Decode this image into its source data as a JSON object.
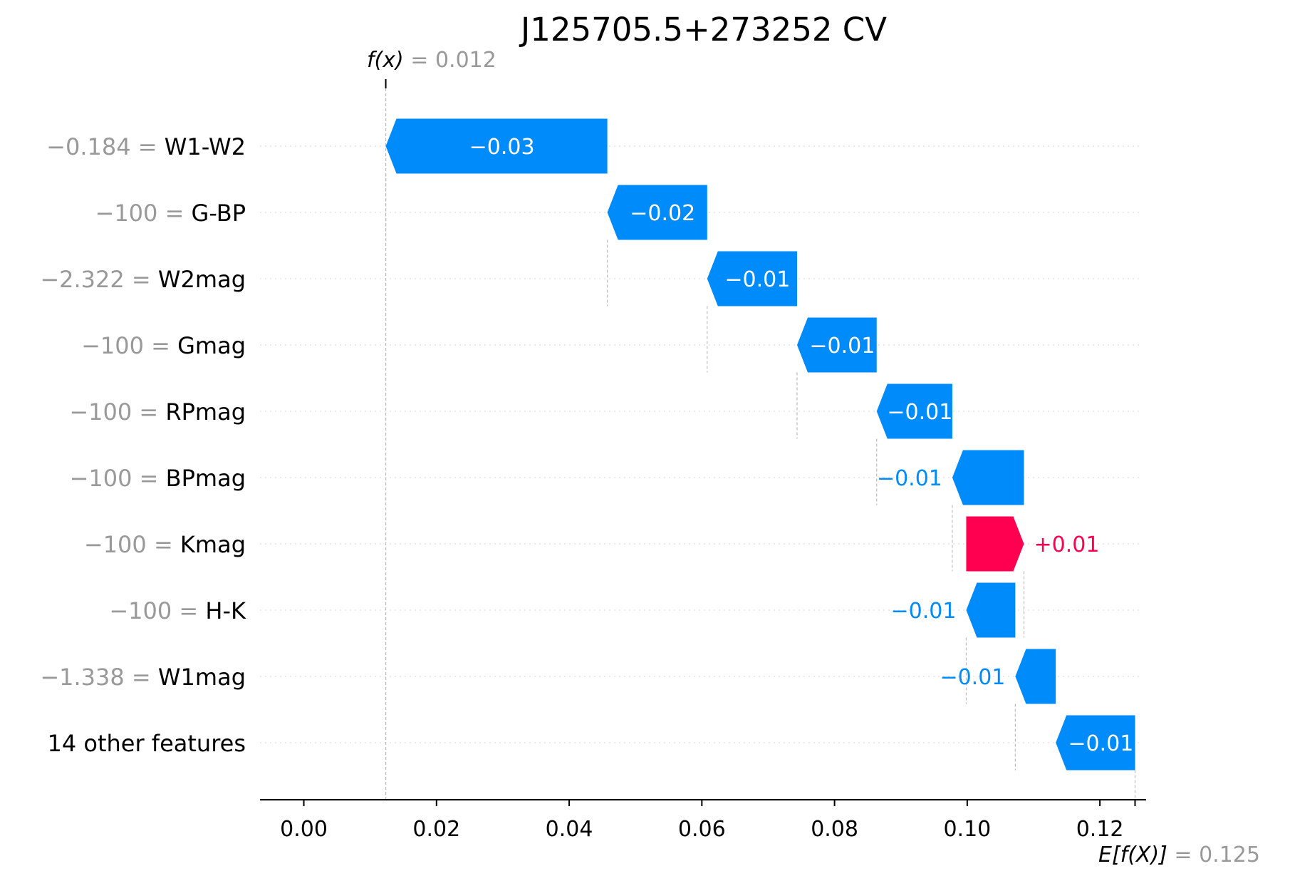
{
  "chart_data": {
    "type": "waterfall",
    "title": "J125705.5+273252 CV",
    "fx": {
      "label": "f(x)",
      "value_text": "0.012",
      "value": 0.01235
    },
    "ex": {
      "label": "E[f(X)]",
      "value_text": "0.125",
      "value": 0.1253
    },
    "xlim": [
      -0.0065,
      0.126
    ],
    "x_ticks": [
      {
        "value": 0.0,
        "label": "0.00"
      },
      {
        "value": 0.02,
        "label": "0.02"
      },
      {
        "value": 0.04,
        "label": "0.04"
      },
      {
        "value": 0.06,
        "label": "0.06"
      },
      {
        "value": 0.08,
        "label": "0.08"
      },
      {
        "value": 0.1,
        "label": "0.10"
      },
      {
        "value": 0.12,
        "label": "0.12"
      }
    ],
    "features": [
      {
        "value_text": "−0.184",
        "name": "W1-W2",
        "start": 0.04575,
        "end": 0.01235,
        "label": "−0.03",
        "label_inside": true
      },
      {
        "value_text": "−100",
        "name": "G-BP",
        "start": 0.0608,
        "end": 0.04575,
        "label": "−0.02",
        "label_inside": true
      },
      {
        "value_text": "−2.322",
        "name": "W2mag",
        "start": 0.07435,
        "end": 0.0608,
        "label": "−0.01",
        "label_inside": true
      },
      {
        "value_text": "−100",
        "name": "Gmag",
        "start": 0.08635,
        "end": 0.07435,
        "label": "−0.01",
        "label_inside": true
      },
      {
        "value_text": "−100",
        "name": "RPmag",
        "start": 0.09775,
        "end": 0.08635,
        "label": "−0.01",
        "label_inside": true
      },
      {
        "value_text": "−100",
        "name": "BPmag",
        "start": 0.10855,
        "end": 0.09775,
        "label": "−0.01",
        "label_inside": false
      },
      {
        "value_text": "−100",
        "name": "Kmag",
        "start": 0.09985,
        "end": 0.10855,
        "label": "+0.01",
        "label_inside": false
      },
      {
        "value_text": "−100",
        "name": "H-K",
        "start": 0.10725,
        "end": 0.09985,
        "label": "−0.01",
        "label_inside": false
      },
      {
        "value_text": "−1.338",
        "name": "W1mag",
        "start": 0.11335,
        "end": 0.10725,
        "label": "−0.01",
        "label_inside": false
      },
      {
        "value_text": "",
        "name": "14 other features",
        "start": 0.1253,
        "end": 0.11335,
        "label": "−0.01",
        "label_inside": true
      }
    ],
    "colors": {
      "negative": "#008bfb",
      "positive": "#ff0051",
      "feature_value": "#999999",
      "text": "#000000",
      "grid": "#dddddd",
      "base_line": "#bbbbbb"
    }
  }
}
